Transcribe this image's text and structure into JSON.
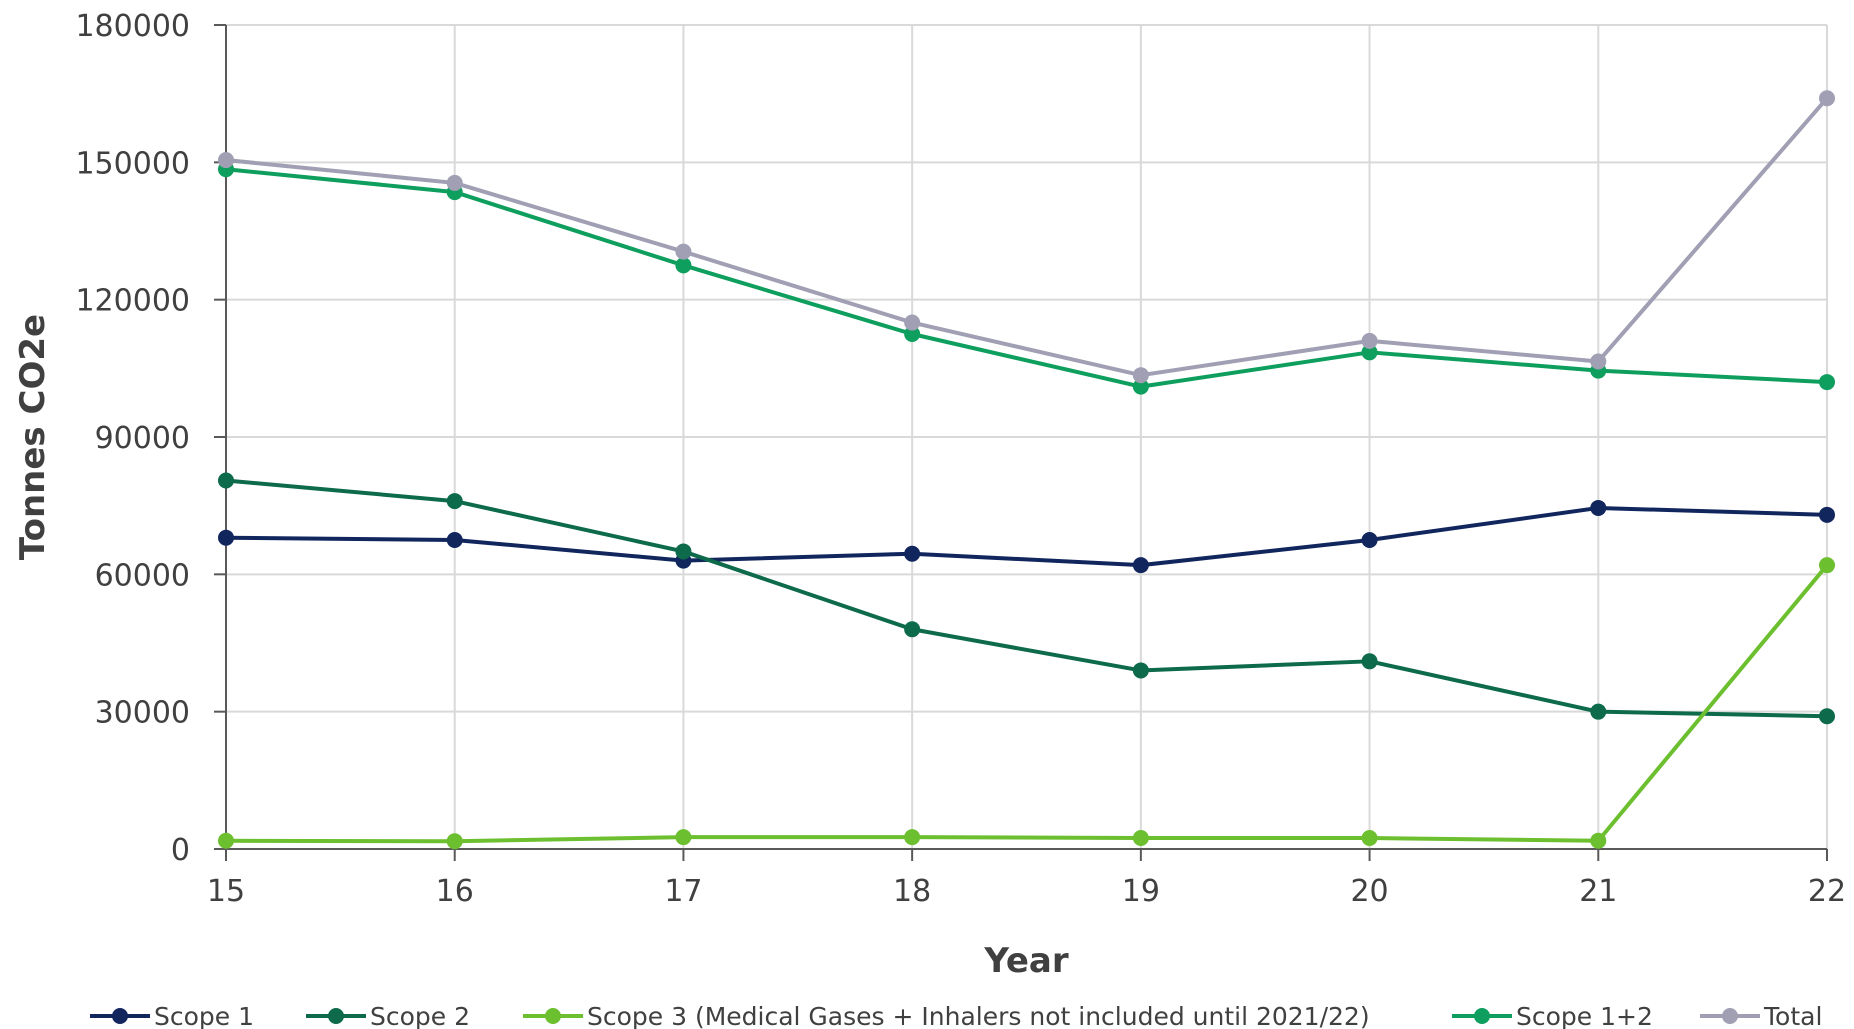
{
  "chart_data": {
    "type": "line",
    "title": "",
    "xlabel": "Year",
    "ylabel": "Tonnes CO2e",
    "categories": [
      "15",
      "16",
      "17",
      "18",
      "19",
      "20",
      "21",
      "22"
    ],
    "ylim": [
      0,
      180000
    ],
    "yticks": [
      "0",
      "30000",
      "60000",
      "90000",
      "120000",
      "150000",
      "180000"
    ],
    "grid": true,
    "legend_position": "bottom",
    "series": [
      {
        "name": "Scope 1",
        "color": "#12265e",
        "values": [
          68000,
          67500,
          63000,
          64500,
          62000,
          67500,
          74500,
          73000
        ]
      },
      {
        "name": "Scope 2",
        "color": "#0d6a4a",
        "values": [
          80500,
          76000,
          65000,
          48000,
          39000,
          41000,
          30000,
          29000
        ]
      },
      {
        "name": "Scope  3 (Medical Gases + Inhalers not included until 2021/22)",
        "color": "#6cbf2e",
        "values": [
          1800,
          1700,
          2600,
          2600,
          2400,
          2400,
          1800,
          62000
        ]
      },
      {
        "name": "Scope 1+2",
        "color": "#0e9e5e",
        "values": [
          148500,
          143500,
          127500,
          112500,
          101000,
          108500,
          104500,
          102000
        ]
      },
      {
        "name": "Total",
        "color": "#a09fb3",
        "values": [
          150500,
          145500,
          130500,
          115000,
          103500,
          111000,
          106500,
          164000
        ]
      }
    ]
  }
}
